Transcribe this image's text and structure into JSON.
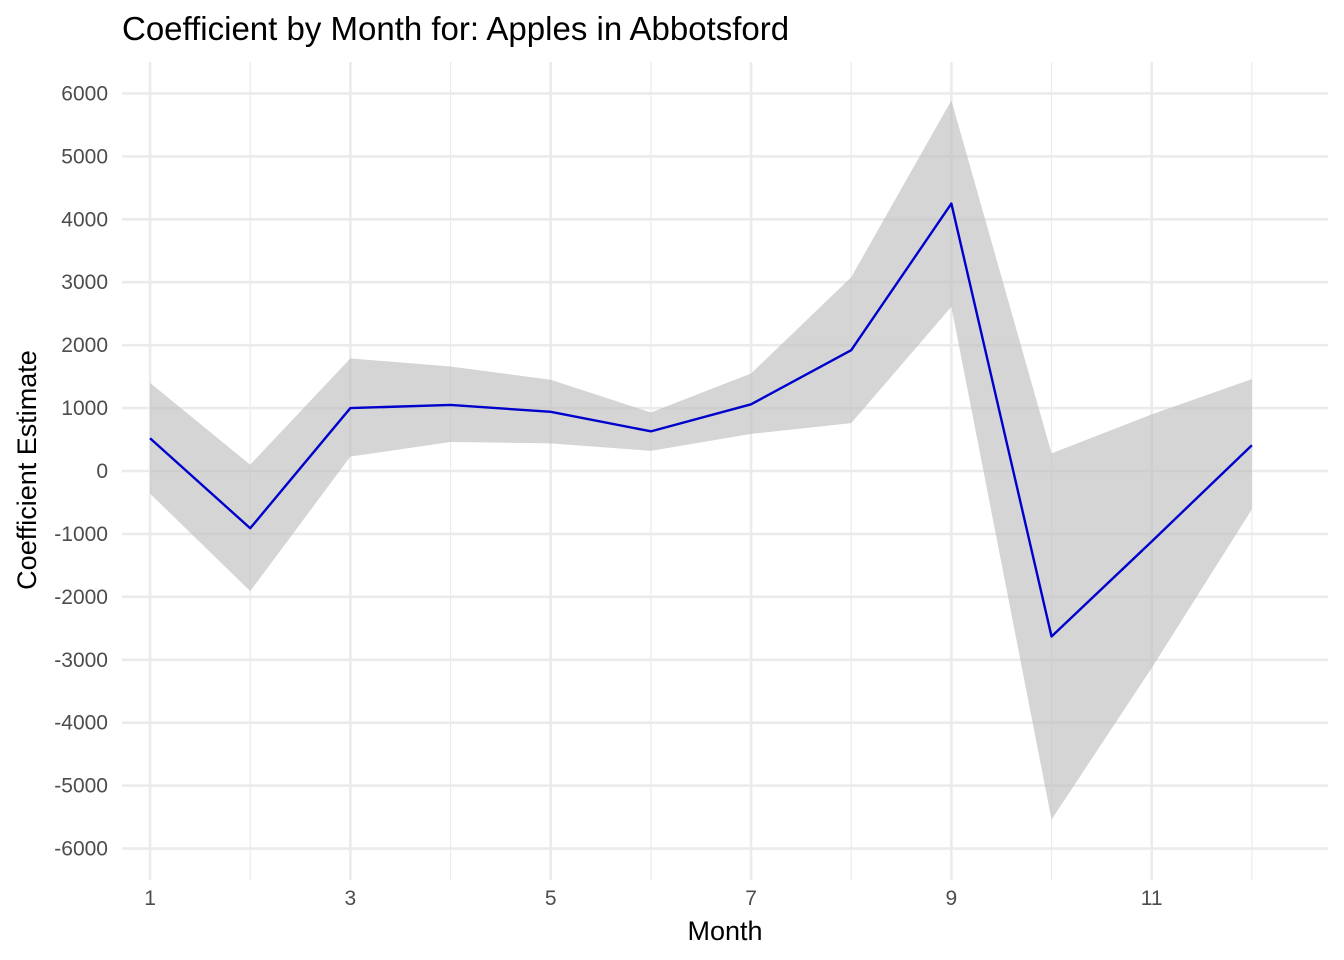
{
  "chart_data": {
    "type": "line",
    "title": "Coefficient by Month for: Apples in Abbotsford",
    "xlabel": "Month",
    "ylabel": "Coefficient Estimate",
    "x": [
      1,
      2,
      3,
      4,
      5,
      6,
      7,
      8,
      9,
      10,
      11,
      12
    ],
    "series": [
      {
        "values": [
          520,
          -910,
          1000,
          1050,
          940,
          630,
          1060,
          1920,
          4250,
          -2630,
          -1120,
          410
        ],
        "ci_lower": [
          -360,
          -1910,
          230,
          460,
          440,
          320,
          590,
          760,
          2610,
          -5540,
          -3130,
          -610
        ],
        "ci_upper": [
          1400,
          100,
          1790,
          1660,
          1450,
          930,
          1550,
          3080,
          5890,
          280,
          900,
          1460
        ]
      }
    ],
    "xlim": [
      0.72,
      12.76
    ],
    "ylim": [
      -6500,
      6500
    ],
    "x_ticks": [
      1,
      3,
      5,
      7,
      9,
      11
    ],
    "x_minor_ticks": [
      2,
      4,
      6,
      8,
      10,
      12
    ],
    "y_ticks": [
      -6000,
      -5000,
      -4000,
      -3000,
      -2000,
      -1000,
      0,
      1000,
      2000,
      3000,
      4000,
      5000,
      6000
    ],
    "grid": true,
    "legend": "none",
    "colors": {
      "line": "#0000cd",
      "ribbon": "#bebebe",
      "grid": "#ebebeb",
      "tick_text": "#4d4d4d"
    }
  }
}
